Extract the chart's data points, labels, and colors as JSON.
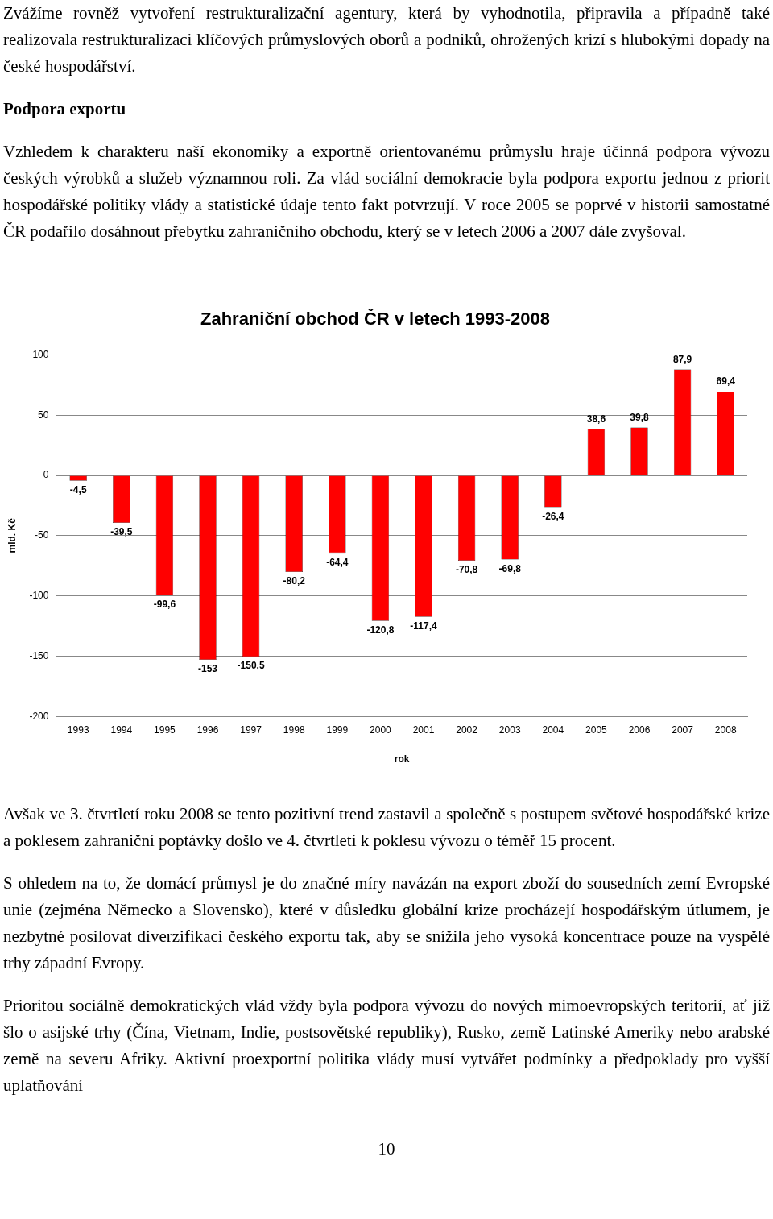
{
  "chart_data": {
    "type": "bar",
    "title": "Zahraniční obchod ČR v letech 1993-2008",
    "xlabel": "rok",
    "ylabel": "mld. Kč",
    "categories": [
      "1993",
      "1994",
      "1995",
      "1996",
      "1997",
      "1998",
      "1999",
      "2000",
      "2001",
      "2002",
      "2003",
      "2004",
      "2005",
      "2006",
      "2007",
      "2008"
    ],
    "values": [
      -4.5,
      -39.5,
      -99.6,
      -153,
      -150.5,
      -80.2,
      -64.4,
      -120.8,
      -117.4,
      -70.8,
      -69.8,
      -26.4,
      38.6,
      39.8,
      87.9,
      69.4
    ],
    "value_labels": [
      "-4,5",
      "-39,5",
      "-99,6",
      "-153",
      "-150,5",
      "-80,2",
      "-64,4",
      "-120,8",
      "-117,4",
      "-70,8",
      "-69,8",
      "-26,4",
      "38,6",
      "39,8",
      "87,9",
      "69,4"
    ],
    "color": "#ff0000",
    "ylim": [
      -200,
      100
    ],
    "yticks": [
      -200,
      -150,
      -100,
      -50,
      0,
      50,
      100
    ],
    "grid": "y",
    "legend": false,
    "annotations": [
      "Zvážíme rovněž vytvoření restrukturalizační agentury, která by vyhodnotila, připravila a případně také realizovala restrukturalizaci klíčových průmyslových oborů a podniků, ohrožených krizí s hlubokými dopady na české hospodářství.",
      "Podpora exportu",
      "Vzhledem k charakteru naší ekonomiky a exportně orientovanému průmyslu hraje účinná podpora vývozu českých výrobků a služeb významnou roli. Za vlád sociální demokracie byla podpora exportu jednou z priorit hospodářské politiky vlády a statistické údaje tento fakt potvrzují. V roce 2005 se poprvé v historii samostatné ČR podařilo dosáhnout přebytku zahraničního obchodu, který se v letech 2006 a 2007 dále zvyšoval.",
      "Avšak ve 3. čtvrtletí roku 2008 se tento pozitivní trend zastavil a společně s postupem světové hospodářské krize a poklesem zahraniční poptávky došlo ve 4. čtvrtletí k poklesu vývozu o téměř 15 procent.",
      "S ohledem na to, že domácí průmysl je do značné míry navázán na export zboží do sousedních zemí Evropské unie (zejména Německo a Slovensko), které v důsledku globální krize procházejí hospodářským útlumem, je nezbytné posilovat diverzifikaci českého exportu tak, aby se snížila jeho vysoká koncentrace pouze na vyspělé trhy západní Evropy.",
      "Prioritou sociálně demokratických vlád vždy byla podpora vývozu do nových mimoevropských teritorií, ať již šlo o asijské trhy (Čína, Vietnam, Indie, postsovětské republiky), Rusko, země Latinské Ameriky nebo arabské země na severu Afriky. Aktivní proexportní politika vlády musí vytvářet podmínky a předpoklady pro vyšší uplatňování",
      "10"
    ]
  }
}
